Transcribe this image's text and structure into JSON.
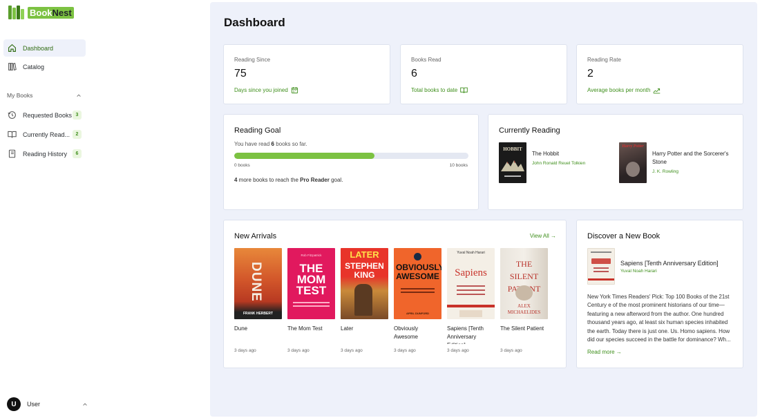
{
  "app": {
    "name": "BookNest",
    "name_prefix": "Book",
    "name_suffix": "Nest"
  },
  "sidebar": {
    "nav": [
      {
        "label": "Dashboard",
        "icon": "home-icon",
        "active": true
      },
      {
        "label": "Catalog",
        "icon": "library-icon",
        "active": false
      }
    ],
    "section_label": "My Books",
    "my_books": [
      {
        "label": "Requested Books",
        "icon": "clock-return-icon",
        "count": "3"
      },
      {
        "label": "Currently Read...",
        "icon": "open-book-icon",
        "count": "2"
      },
      {
        "label": "Reading History",
        "icon": "notebook-icon",
        "count": "6"
      }
    ],
    "user": {
      "initial": "U",
      "name": "User"
    }
  },
  "main": {
    "title": "Dashboard",
    "stats": [
      {
        "label": "Reading Since",
        "value": "75",
        "sub": "Days since you joined",
        "icon": "calendar-icon"
      },
      {
        "label": "Books Read",
        "value": "6",
        "sub": "Total books to date",
        "icon": "book-icon"
      },
      {
        "label": "Reading Rate",
        "value": "2",
        "sub": "Average books per month",
        "icon": "trend-up-icon"
      }
    ],
    "goal": {
      "title": "Reading Goal",
      "text_prefix": "You have read ",
      "read": "6",
      "text_suffix": " books so far.",
      "progress_fraction": 0.6,
      "min_label": "0 books",
      "max_label": "10 books",
      "remaining": "4",
      "foot_mid": " more books to reach the ",
      "goal_name": "Pro Reader",
      "foot_end": " goal."
    },
    "currently_reading": {
      "title": "Currently Reading",
      "books": [
        {
          "title": "The Hobbit",
          "author": "John Ronald Reuel Tolkien",
          "cover_text": "HOBBIT"
        },
        {
          "title": "Harry Potter and the Sorcerer's Stone",
          "author": "J. K. Rowling",
          "cover_text": "Harry Potter"
        }
      ]
    },
    "new_arrivals": {
      "title": "New Arrivals",
      "view_all": "View All →",
      "books": [
        {
          "title": "Dune",
          "time": "3 days ago",
          "cover_main": "DUNE",
          "cover_sub": "FRANK HERBERT"
        },
        {
          "title": "The Mom Test",
          "time": "3 days ago",
          "cover_main": "THE MOM TEST",
          "cover_sub": "Rob Fitzpatrick"
        },
        {
          "title": "Later",
          "time": "3 days ago",
          "cover_main": "LATER",
          "cover_sub": "STEPHEN KING"
        },
        {
          "title": "Obviously Awesome",
          "time": "3 days ago",
          "cover_main": "OBVIOUSLY AWESOME",
          "cover_sub": "APRIL DUNFORD"
        },
        {
          "title": "Sapiens [Tenth Anniversary Edition]",
          "time": "3 days ago",
          "cover_main": "Sapiens",
          "cover_sub": "Yuval Noah Harari"
        },
        {
          "title": "The Silent Patient",
          "time": "3 days ago",
          "cover_main": "THE SILENT PATIENT",
          "cover_sub": "ALEX MICHAELIDES"
        }
      ]
    },
    "discover": {
      "title": "Discover a New Book",
      "book_title": "Sapiens [Tenth Anniversary Edition]",
      "author": "Yuval Noah Harari",
      "description": "New York Times Readers' Pick: Top 100 Books of the 21st Century e of the most prominent historians of our time—featuring a new afterword from the author. One hundred thousand years ago, at least six human species inhabited the earth. Today there is just one. Us. Homo sapiens. How did our species succeed in the battle for dominance? Wh...",
      "read_more": "Read more →"
    }
  },
  "colors": {
    "accent": "#7cc242",
    "accent_text": "#3f8f1c",
    "main_bg": "#eef1fa"
  }
}
